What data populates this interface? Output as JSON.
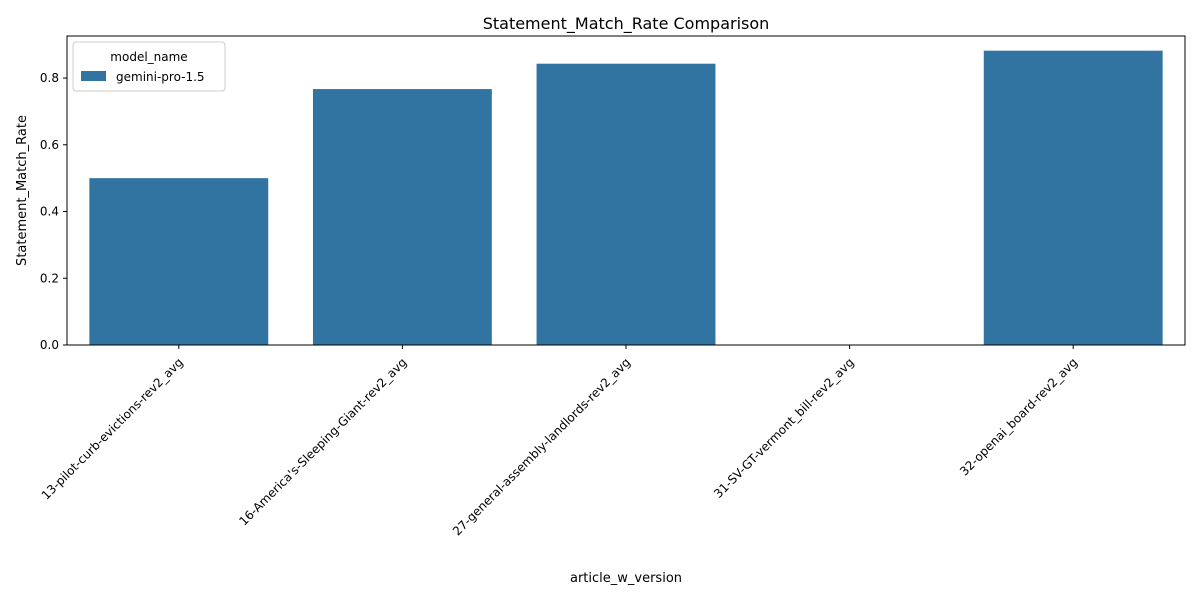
{
  "chart_data": {
    "type": "bar",
    "title": "Statement_Match_Rate Comparison",
    "xlabel": "article_w_version",
    "ylabel": "Statement_Match_Rate",
    "categories": [
      "13-pilot-curb-evictions-rev2_avg",
      "16-America's-Sleeping-Giant-rev2_avg",
      "27-general-assembly-landlords-rev2_avg",
      "31-SV-GT-vermont_bill-rev2_avg",
      "32-openai_board-rev2_avg"
    ],
    "series": [
      {
        "name": "gemini-pro-1.5",
        "color": "#3274a1",
        "values": [
          0.5,
          0.767,
          0.843,
          0.0,
          0.882
        ]
      }
    ],
    "ylim": [
      0,
      0.926
    ],
    "yticks": [
      0.0,
      0.2,
      0.4,
      0.6,
      0.8
    ],
    "ytick_labels": [
      "0.0",
      "0.2",
      "0.4",
      "0.6",
      "0.8"
    ],
    "legend": {
      "title": "model_name",
      "placement": "top-left"
    },
    "grid": false
  }
}
